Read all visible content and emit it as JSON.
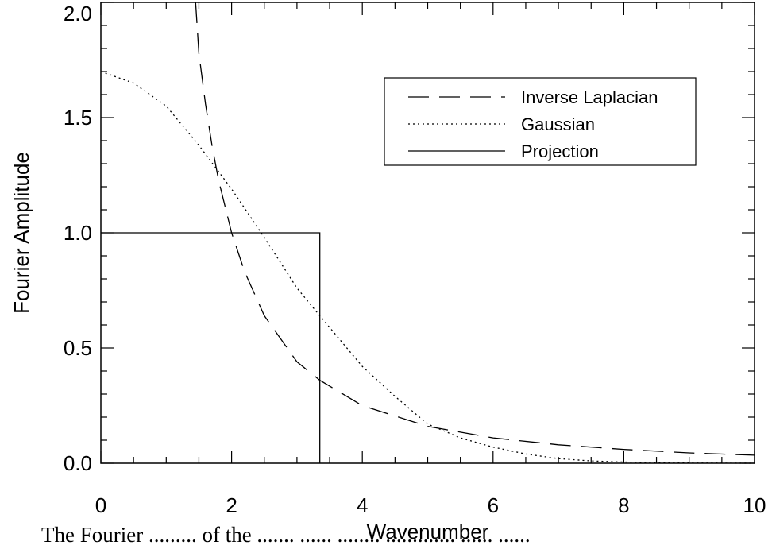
{
  "chart_data": {
    "type": "line",
    "title": "",
    "xlabel": "Wavenumber",
    "ylabel": "Fourier Amplitude",
    "xlim": [
      0,
      10
    ],
    "ylim": [
      0,
      2
    ],
    "x_ticks": [
      0,
      2,
      4,
      6,
      8,
      10
    ],
    "x_tick_labels": [
      "0",
      "2",
      "4",
      "6",
      "8",
      "10"
    ],
    "y_ticks": [
      0,
      0.5,
      1,
      1.5,
      2
    ],
    "y_tick_labels": [
      "0.0",
      "0.5",
      "1.0",
      "1.5",
      "2.0"
    ],
    "grid": false,
    "legend_position": "top-right",
    "series": [
      {
        "name": "Inverse Laplacian",
        "style": "dashed",
        "color": "#000000",
        "x": [
          1.45,
          1.5,
          1.6,
          1.7,
          1.8,
          2.0,
          2.2,
          2.5,
          3.0,
          3.35,
          4.0,
          5.0,
          6.0,
          7.0,
          8.0,
          9.0,
          10.0
        ],
        "y": [
          2.0,
          1.78,
          1.56,
          1.38,
          1.23,
          1.0,
          0.83,
          0.64,
          0.44,
          0.36,
          0.25,
          0.16,
          0.11,
          0.08,
          0.06,
          0.045,
          0.035
        ]
      },
      {
        "name": "Gaussian",
        "style": "dotted",
        "color": "#000000",
        "x": [
          0,
          0.5,
          1.0,
          1.5,
          2.0,
          2.5,
          3.0,
          3.35,
          4.0,
          4.5,
          5.0,
          5.5,
          6.0,
          6.5,
          7.0,
          7.5,
          8.0,
          9.0,
          10.0
        ],
        "y": [
          1.7,
          1.65,
          1.55,
          1.38,
          1.19,
          0.98,
          0.76,
          0.64,
          0.42,
          0.29,
          0.17,
          0.11,
          0.07,
          0.04,
          0.02,
          0.01,
          0.005,
          0.001,
          0.0
        ]
      },
      {
        "name": "Projection",
        "style": "solid",
        "color": "#000000",
        "x": [
          0,
          3.35,
          3.35
        ],
        "y": [
          1.0,
          1.0,
          0.0
        ]
      }
    ]
  },
  "caption": {
    "text": "The Fourier ......... of the ....... ...... ........ ............. ...... ......"
  }
}
